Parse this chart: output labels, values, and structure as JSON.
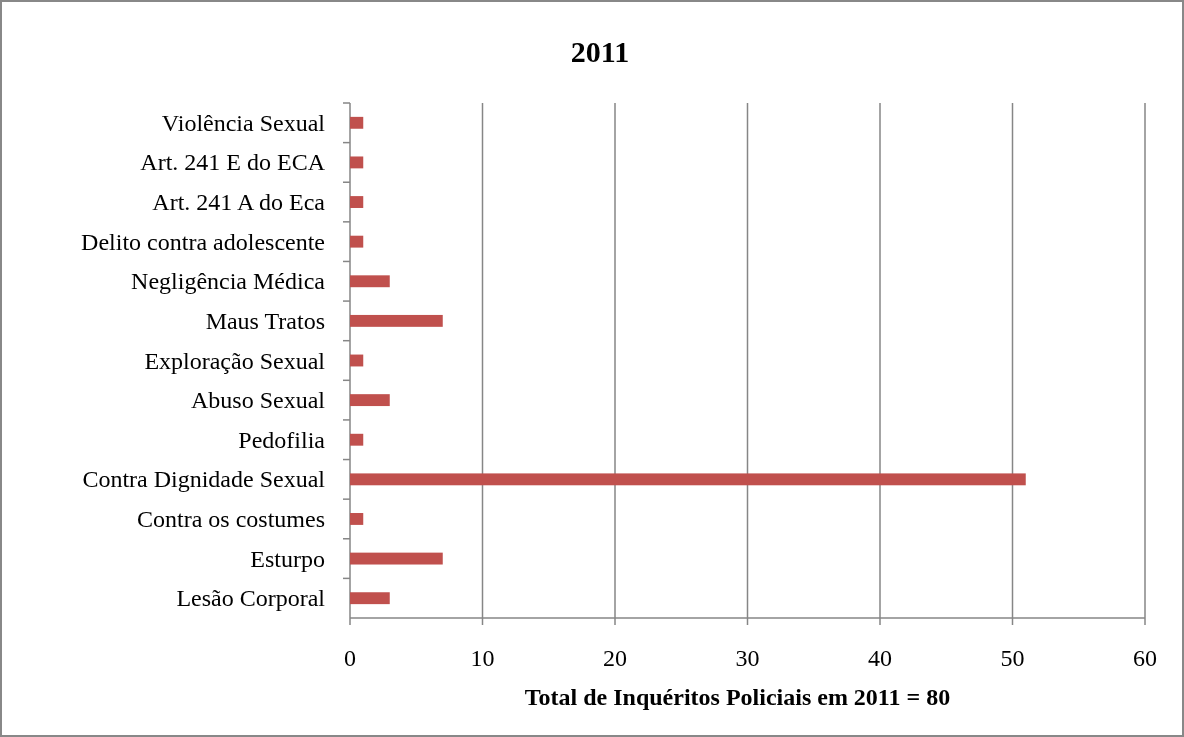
{
  "chart_data": {
    "type": "bar",
    "orientation": "horizontal",
    "title": "2011",
    "xlabel": "Total de Inquéritos Policiais em 2011 = 80",
    "categories": [
      "Violência Sexual",
      "Art. 241 E do ECA",
      "Art. 241 A do Eca",
      "Delito contra adolescente",
      "Negligência Médica",
      "Maus Tratos",
      "Exploração Sexual",
      "Abuso Sexual",
      "Pedofilia",
      "Contra Dignidade Sexual",
      "Contra os costumes",
      "Esturpo",
      "Lesão Corporal"
    ],
    "values": [
      1,
      1,
      1,
      1,
      3,
      7,
      1,
      3,
      1,
      51,
      1,
      7,
      3
    ],
    "color": "#c0504d",
    "xlim": [
      0,
      60
    ],
    "xticks": [
      0,
      10,
      20,
      30,
      40,
      50,
      60
    ],
    "grid": "x"
  }
}
